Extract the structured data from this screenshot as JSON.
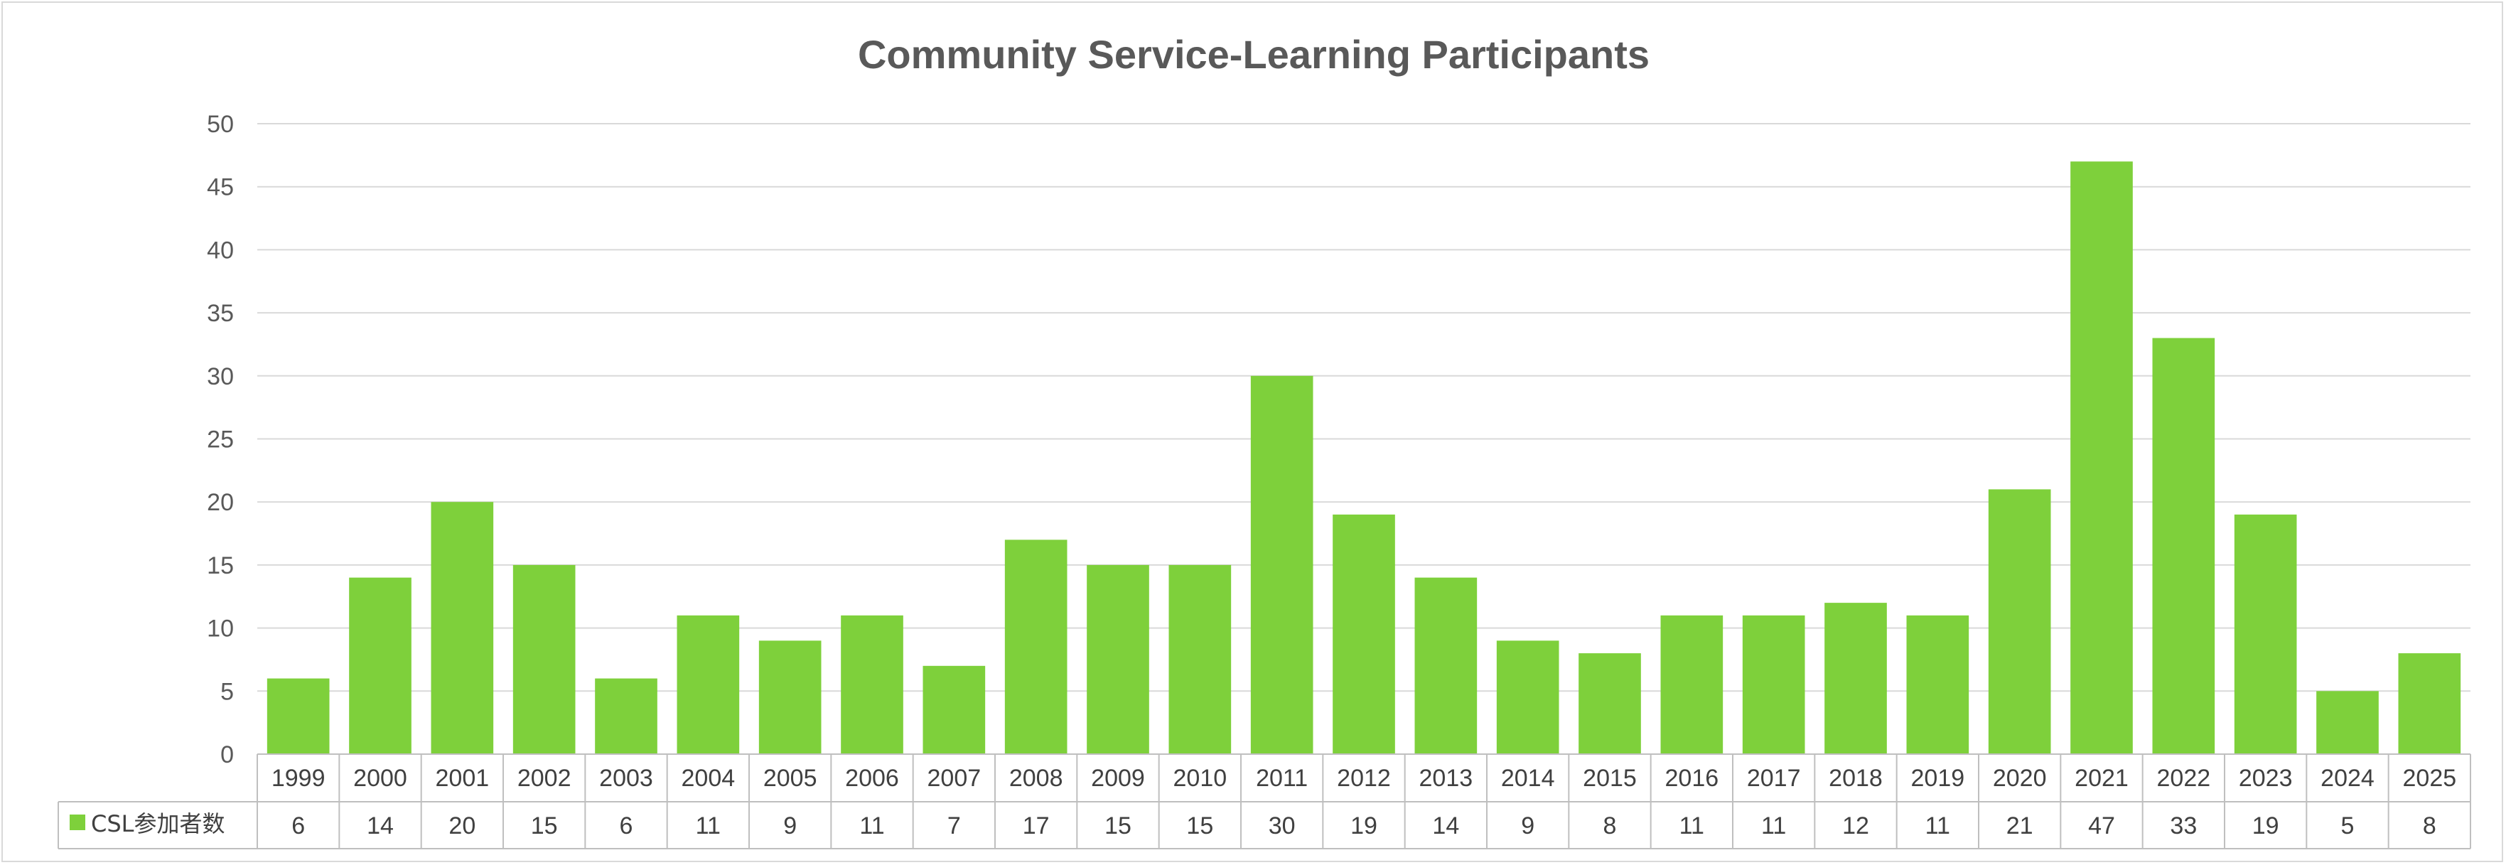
{
  "chart_data": {
    "type": "bar",
    "title": "Community Service-Learning Participants",
    "categories": [
      "1999",
      "2000",
      "2001",
      "2002",
      "2003",
      "2004",
      "2005",
      "2006",
      "2007",
      "2008",
      "2009",
      "2010",
      "2011",
      "2012",
      "2013",
      "2014",
      "2015",
      "2016",
      "2017",
      "2018",
      "2019",
      "2020",
      "2021",
      "2022",
      "2023",
      "2024",
      "2025"
    ],
    "series": [
      {
        "name": "CSL参加者数",
        "color": "#7ed03b",
        "values": [
          6,
          14,
          20,
          15,
          6,
          11,
          9,
          11,
          7,
          17,
          15,
          15,
          30,
          19,
          14,
          9,
          8,
          11,
          11,
          12,
          11,
          21,
          47,
          33,
          19,
          5,
          8
        ]
      }
    ],
    "ylim": [
      0,
      50
    ],
    "yticks": [
      0,
      5,
      10,
      15,
      20,
      25,
      30,
      35,
      40,
      45,
      50
    ],
    "grid": true,
    "legend": "data-table",
    "xlabel": "",
    "ylabel": ""
  }
}
